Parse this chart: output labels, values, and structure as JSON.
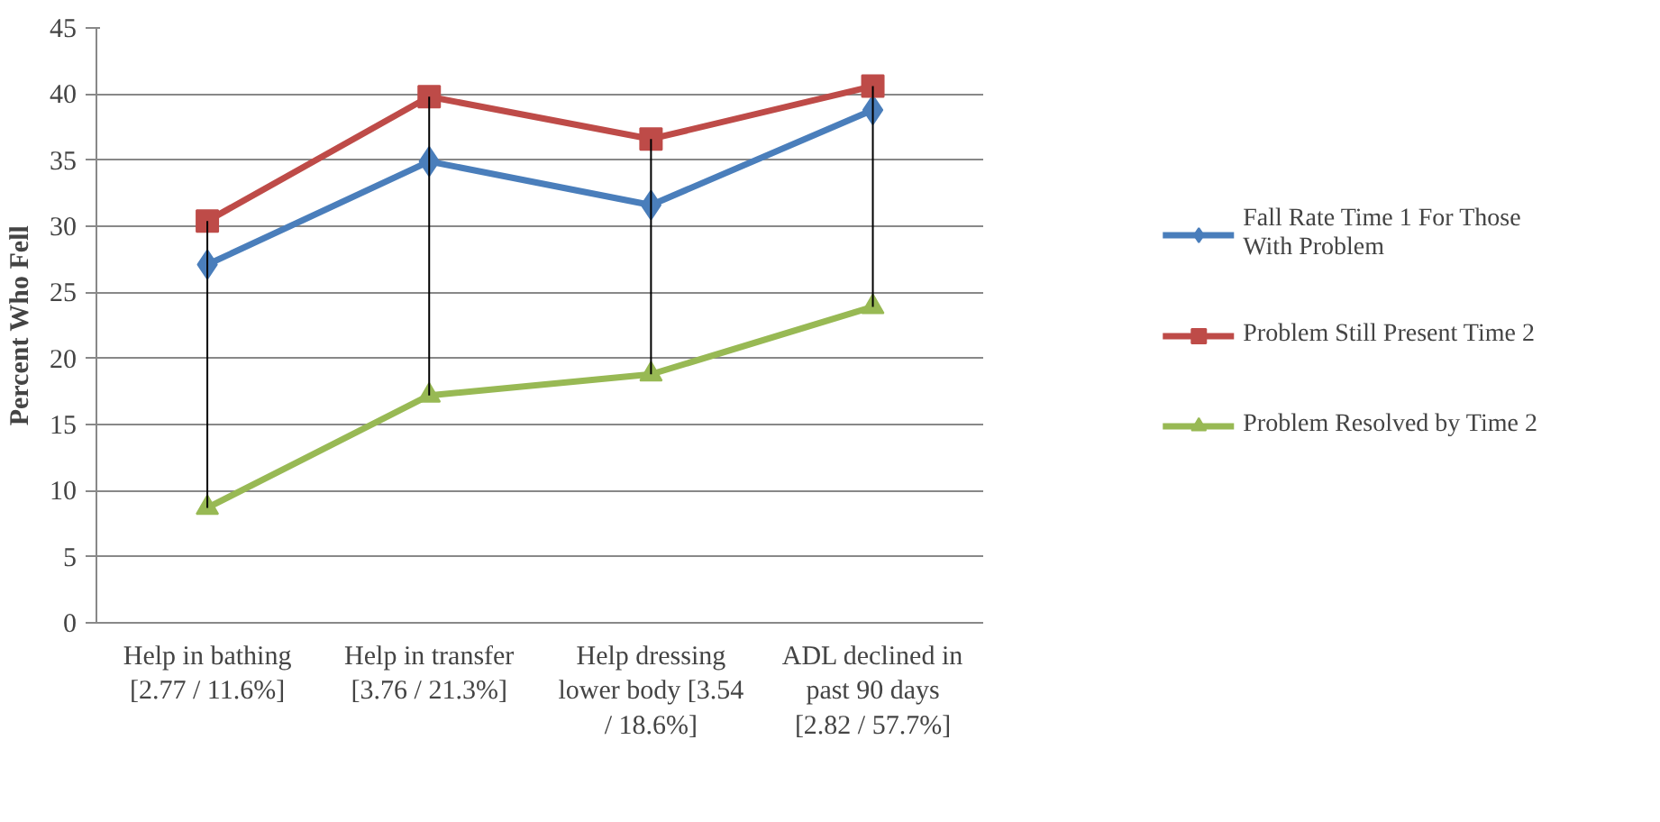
{
  "chart_data": {
    "type": "line",
    "ylabel": "Percent Who Fell",
    "categories": [
      "Help in bathing  [2.77 / 11.6%]",
      "Help in transfer  [3.76 / 21.3%]",
      "Help dressing lower body [3.54 / 18.6%]",
      "ADL declined in past 90 days  [2.82 / 57.7%]"
    ],
    "series": [
      {
        "name": "Fall Rate Time 1 For Those With Problem",
        "color": "#4a7ebb",
        "marker": "diamond",
        "values": [
          27.1,
          34.9,
          31.6,
          38.8
        ]
      },
      {
        "name": "Problem Still Present Time 2",
        "color": "#be4b48",
        "marker": "square",
        "values": [
          30.4,
          39.8,
          36.6,
          40.6
        ]
      },
      {
        "name": "Problem Resolved by Time 2",
        "color": "#98b954",
        "marker": "triangle",
        "values": [
          8.7,
          17.2,
          18.8,
          23.9
        ],
        "errors": [
          [
            8.7,
            30.4
          ],
          [
            17.2,
            39.8
          ],
          [
            18.8,
            36.6
          ],
          [
            23.9,
            40.6
          ]
        ]
      }
    ],
    "ylim": [
      0,
      45
    ],
    "yticks": [
      0,
      5,
      10,
      15,
      20,
      25,
      30,
      35,
      40,
      45
    ],
    "grid": "y",
    "legend": "right"
  }
}
